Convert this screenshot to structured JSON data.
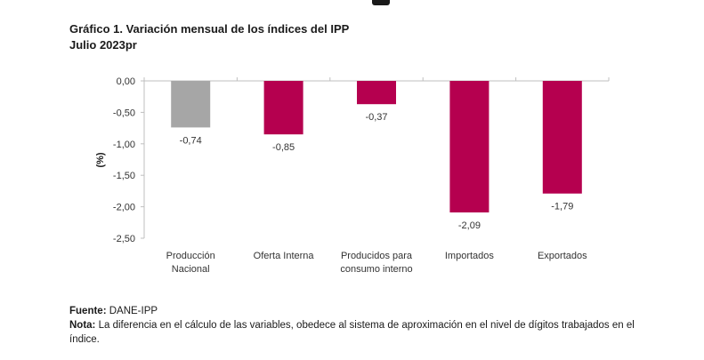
{
  "header": {
    "title_line1": "Gráfico 1. Variación mensual de los índices del IPP",
    "title_line2": "Julio 2023pr"
  },
  "chart_data": {
    "type": "bar",
    "ylabel": "(%)",
    "xlabel": "",
    "ylim": [
      -2.5,
      0
    ],
    "yticks": [
      "0,00",
      "-0,50",
      "-1,00",
      "-1,50",
      "-2,00",
      "-2,50"
    ],
    "ytick_values": [
      0,
      -0.5,
      -1.0,
      -1.5,
      -2.0,
      -2.5
    ],
    "categories": [
      [
        "Producción",
        "Nacional"
      ],
      [
        "Oferta Interna"
      ],
      [
        "Producidos para",
        "consumo interno"
      ],
      [
        "Importados"
      ],
      [
        "Exportados"
      ]
    ],
    "values": [
      -0.74,
      -0.85,
      -0.37,
      -2.09,
      -1.79
    ],
    "value_labels": [
      "-0,74",
      "-0,85",
      "-0,37",
      "-2,09",
      "-1,79"
    ],
    "colors": [
      "#a6a6a6",
      "#b5004f",
      "#b5004f",
      "#b5004f",
      "#b5004f"
    ],
    "grid": false
  },
  "footer": {
    "source_label": "Fuente:",
    "source_text": "DANE-IPP",
    "note_label": "Nota:",
    "note_text": "La diferencia en el cálculo de las variables, obedece al sistema de aproximación en el nivel de dígitos trabajados en el índice."
  }
}
